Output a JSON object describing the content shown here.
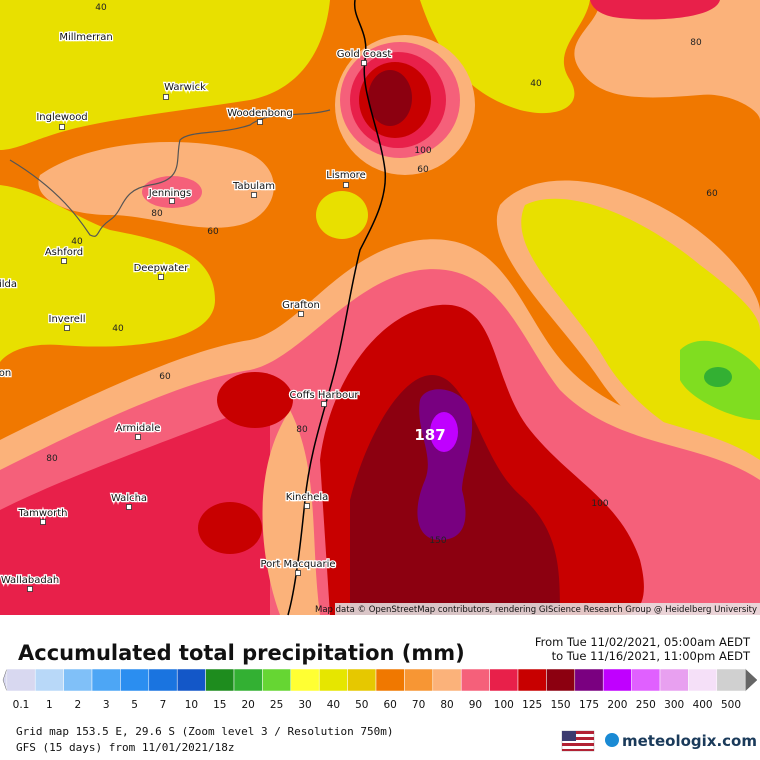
{
  "title": "Accumulated total precipitation (mm)",
  "period": {
    "from": "From Tue 11/02/2021, 05:00am AEDT",
    "to": "to Tue 11/16/2021, 11:00pm AEDT"
  },
  "attribution": "Map data © OpenStreetMap contributors, rendering GIScience Research Group @ Heidelberg University",
  "max_label": "187",
  "places": [
    "Millmerran",
    "Warwick",
    "Inglewood",
    "Woodenbong",
    "Gold Coast",
    "Lismore",
    "Jennings",
    "Tabulam",
    "Ashford",
    "Deepwater",
    "ilda",
    "Grafton",
    "Inverell",
    "on",
    "Coffs Harbour",
    "Armidale",
    "Walcha",
    "Tamworth",
    "Kinchela",
    "Port Macquarie",
    "Wallabadah"
  ],
  "contour_labels": [
    40,
    80,
    40,
    100,
    60,
    60,
    80,
    60,
    40,
    40,
    60,
    80,
    80,
    100,
    150
  ],
  "legend": [
    {
      "value": 0.1,
      "color": "#d8d8f0"
    },
    {
      "value": 1,
      "color": "#b8d8f8"
    },
    {
      "value": 2,
      "color": "#80c0f8"
    },
    {
      "value": 3,
      "color": "#4da6f5"
    },
    {
      "value": 5,
      "color": "#2b8ef0"
    },
    {
      "value": 7,
      "color": "#1a74e0"
    },
    {
      "value": 10,
      "color": "#1357c8"
    },
    {
      "value": 15,
      "color": "#1e8c1e"
    },
    {
      "value": 20,
      "color": "#33b033"
    },
    {
      "value": 25,
      "color": "#66d633"
    },
    {
      "value": 30,
      "color": "#ffff33"
    },
    {
      "value": 40,
      "color": "#e6e600"
    },
    {
      "value": 50,
      "color": "#e6c800"
    },
    {
      "value": 60,
      "color": "#f07800"
    },
    {
      "value": 70,
      "color": "#f79634"
    },
    {
      "value": 80,
      "color": "#fbb27a"
    },
    {
      "value": 90,
      "color": "#f5607a"
    },
    {
      "value": 100,
      "color": "#e8204a"
    },
    {
      "value": 125,
      "color": "#c80000"
    },
    {
      "value": 150,
      "color": "#8c0010"
    },
    {
      "value": 175,
      "color": "#7a0080"
    },
    {
      "value": 200,
      "color": "#c000ff"
    },
    {
      "value": 250,
      "color": "#e060ff"
    },
    {
      "value": 300,
      "color": "#e8a0f0"
    },
    {
      "value": 400,
      "color": "#f5e0f8"
    },
    {
      "value": 500,
      "color": "#d0d0d0"
    }
  ],
  "grid_info": "Grid map 153.5 E, 29.6 S (Zoom level 3 / Resolution 750m)",
  "model_info": "GFS (15 days) from 11/01/2021/18z",
  "logo": "meteologix.com"
}
